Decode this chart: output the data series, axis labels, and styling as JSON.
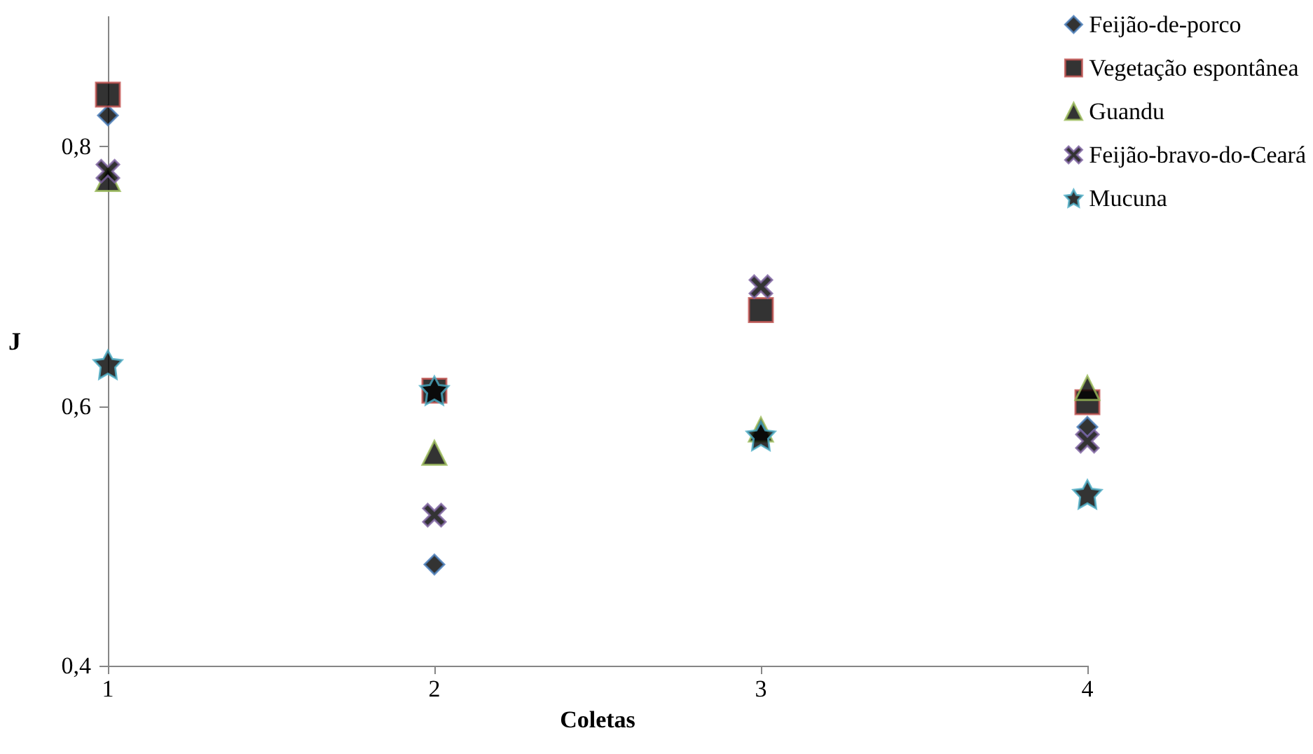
{
  "chart_data": {
    "type": "scatter",
    "xlabel": "Coletas",
    "ylabel": "J",
    "x": [
      1,
      2,
      3,
      4
    ],
    "xlim": [
      1,
      4
    ],
    "xticks": [
      1,
      2,
      3,
      4
    ],
    "ylim": [
      0.4,
      0.9
    ],
    "yticks": [
      {
        "value": 0.4,
        "label": "0,4"
      },
      {
        "value": 0.6,
        "label": "0,6"
      },
      {
        "value": 0.8,
        "label": "0,8"
      }
    ],
    "grid": false,
    "legend": "top right",
    "series": [
      {
        "name": "Feijão-de-porco",
        "color": "#4a7ebb",
        "marker": "diamond",
        "values": [
          0.824,
          0.478,
          null,
          0.584
        ]
      },
      {
        "name": "Vegetação espontânea",
        "color": "#c0504d",
        "marker": "square",
        "values": [
          0.84,
          0.612,
          0.674,
          0.603
        ]
      },
      {
        "name": "Guandu",
        "color": "#9bbb59",
        "marker": "triangle",
        "values": [
          0.775,
          0.564,
          0.582,
          0.614
        ]
      },
      {
        "name": "Feijão-bravo-do-Ceará",
        "color": "#8064a2",
        "marker": "cross",
        "values": [
          0.781,
          0.516,
          0.692,
          0.573
        ]
      },
      {
        "name": "Mucuna",
        "color": "#4bacc6",
        "marker": "star",
        "values": [
          0.632,
          0.612,
          0.577,
          0.532
        ]
      }
    ]
  }
}
